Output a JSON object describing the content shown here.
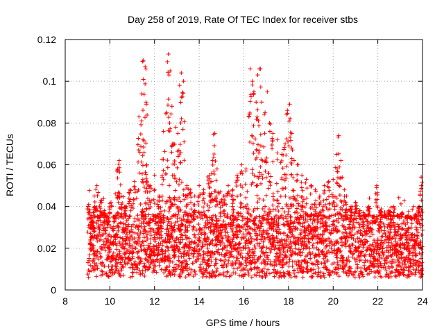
{
  "chart_data": {
    "type": "scatter",
    "title": "Day 258 of 2019, Rate Of TEC Index for receiver stbs",
    "xlabel": "GPS time / hours",
    "ylabel": "ROTI / TECUs",
    "xlim": [
      8,
      24
    ],
    "ylim": [
      0,
      0.12
    ],
    "xticks": [
      8,
      10,
      12,
      14,
      16,
      18,
      20,
      22,
      24
    ],
    "yticks": [
      0,
      0.02,
      0.04,
      0.06,
      0.08,
      0.1,
      0.12
    ],
    "xtick_labels": [
      "8",
      "10",
      "12",
      "14",
      "16",
      "18",
      "20",
      "22",
      "24"
    ],
    "ytick_labels": [
      "0",
      "0.02",
      "0.04",
      "0.06",
      "0.08",
      "0.1",
      "0.12"
    ],
    "grid": true,
    "marker": "+",
    "color": "#ff0000",
    "series": [
      {
        "name": "ROTI",
        "x": [
          9.05,
          9.12,
          9.2,
          9.3,
          9.42,
          9.5,
          9.6,
          9.75,
          9.9,
          10.05,
          10.2,
          10.35,
          10.42,
          10.5,
          10.7,
          10.9,
          11.1,
          11.3,
          11.42,
          11.5,
          11.58,
          11.62,
          11.65,
          11.8,
          12.0,
          12.2,
          12.4,
          12.55,
          12.62,
          12.7,
          12.78,
          12.85,
          12.95,
          13.05,
          13.12,
          13.2,
          13.3,
          13.45,
          13.6,
          13.8,
          14.0,
          14.2,
          14.45,
          14.6,
          14.7,
          14.8,
          14.95,
          15.1,
          15.3,
          15.5,
          15.7,
          15.9,
          16.1,
          16.28,
          16.38,
          16.45,
          16.55,
          16.62,
          16.7,
          16.8,
          16.95,
          17.05,
          17.15,
          17.3,
          17.5,
          17.7,
          17.85,
          17.95,
          18.05,
          18.15,
          18.25,
          18.4,
          18.6,
          18.8,
          19.0,
          19.2,
          19.4,
          19.6,
          19.8,
          20.0,
          20.15,
          20.25,
          20.35,
          20.5,
          20.6,
          20.8,
          21.0,
          21.2,
          21.4,
          21.6,
          21.8,
          21.95,
          22.1,
          22.3,
          22.5,
          22.7,
          22.9,
          23.1,
          23.3,
          23.5,
          23.7,
          23.85,
          23.95,
          24.0
        ],
        "y": [
          0.041,
          0.02,
          0.03,
          0.045,
          0.05,
          0.035,
          0.043,
          0.038,
          0.03,
          0.042,
          0.035,
          0.058,
          0.062,
          0.045,
          0.04,
          0.048,
          0.052,
          0.083,
          0.094,
          0.11,
          0.107,
          0.09,
          0.06,
          0.05,
          0.055,
          0.045,
          0.076,
          0.085,
          0.113,
          0.105,
          0.088,
          0.07,
          0.078,
          0.075,
          0.098,
          0.104,
          0.1,
          0.05,
          0.048,
          0.045,
          0.05,
          0.048,
          0.055,
          0.062,
          0.075,
          0.058,
          0.047,
          0.045,
          0.05,
          0.048,
          0.055,
          0.06,
          0.058,
          0.106,
          0.1,
          0.095,
          0.09,
          0.103,
          0.106,
          0.09,
          0.085,
          0.095,
          0.08,
          0.075,
          0.072,
          0.065,
          0.07,
          0.086,
          0.089,
          0.075,
          0.062,
          0.06,
          0.055,
          0.053,
          0.05,
          0.048,
          0.045,
          0.05,
          0.052,
          0.053,
          0.065,
          0.074,
          0.062,
          0.048,
          0.045,
          0.04,
          0.042,
          0.038,
          0.036,
          0.04,
          0.035,
          0.05,
          0.038,
          0.036,
          0.038,
          0.04,
          0.036,
          0.037,
          0.035,
          0.034,
          0.036,
          0.04,
          0.05,
          0.06
        ]
      }
    ]
  }
}
